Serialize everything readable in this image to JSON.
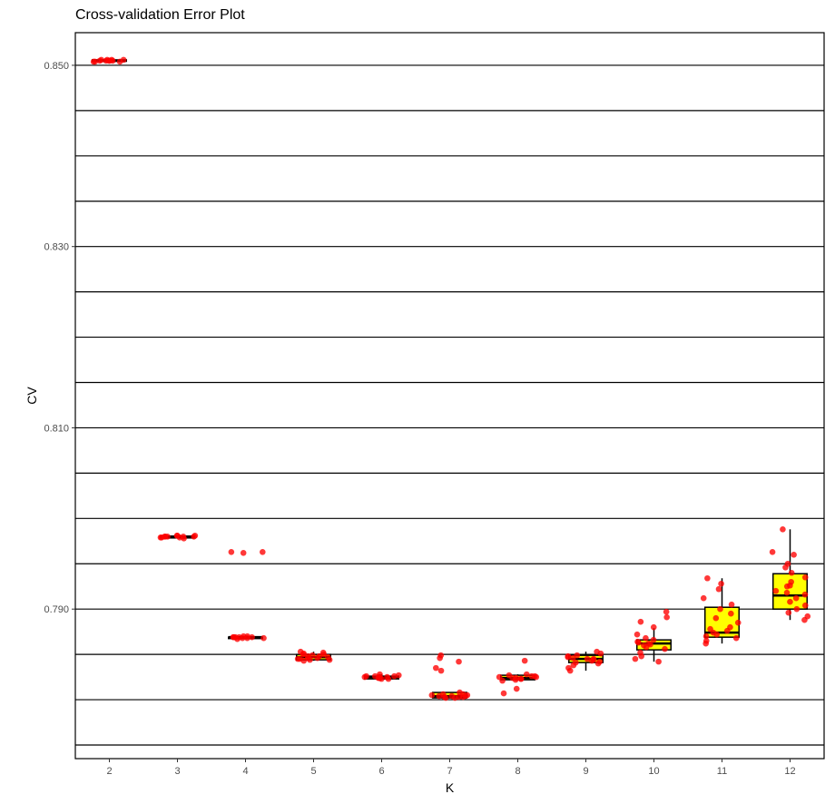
{
  "chart_data": {
    "type": "box",
    "title": "Cross-validation Error Plot",
    "xlabel": "K",
    "ylabel": "CV",
    "categories": [
      "2",
      "3",
      "4",
      "5",
      "6",
      "7",
      "8",
      "9",
      "10",
      "11",
      "12"
    ],
    "ylim": [
      0.7735,
      0.8536
    ],
    "yticks": [
      0.79,
      0.81,
      0.83,
      0.85
    ],
    "ytick_labels": [
      "0.790",
      "0.810",
      "0.830",
      "0.850"
    ],
    "gridlines": [
      0.775,
      0.78,
      0.785,
      0.79,
      0.795,
      0.8,
      0.805,
      0.81,
      0.815,
      0.82,
      0.825,
      0.83,
      0.835,
      0.84,
      0.845,
      0.85
    ],
    "box_fill": "#ffff00",
    "point_color": "#ff0000",
    "boxes": [
      {
        "k": "2",
        "min": 0.8505,
        "q1": 0.8505,
        "median": 0.8505,
        "q3": 0.8506,
        "max": 0.8506
      },
      {
        "k": "3",
        "min": 0.7979,
        "q1": 0.7979,
        "median": 0.798,
        "q3": 0.798,
        "max": 0.7981
      },
      {
        "k": "4",
        "min": 0.7868,
        "q1": 0.7868,
        "median": 0.7869,
        "q3": 0.7869,
        "max": 0.787
      },
      {
        "k": "5",
        "min": 0.7843,
        "q1": 0.7844,
        "median": 0.7847,
        "q3": 0.785,
        "max": 0.7853
      },
      {
        "k": "6",
        "min": 0.7823,
        "q1": 0.7823,
        "median": 0.7825,
        "q3": 0.7826,
        "max": 0.7828
      },
      {
        "k": "7",
        "min": 0.7802,
        "q1": 0.7802,
        "median": 0.7804,
        "q3": 0.7808,
        "max": 0.7808
      },
      {
        "k": "8",
        "min": 0.7822,
        "q1": 0.7822,
        "median": 0.7824,
        "q3": 0.7827,
        "max": 0.7828
      },
      {
        "k": "9",
        "min": 0.7832,
        "q1": 0.7841,
        "median": 0.7845,
        "q3": 0.7849,
        "max": 0.7853
      },
      {
        "k": "10",
        "min": 0.7842,
        "q1": 0.7855,
        "median": 0.7862,
        "q3": 0.7866,
        "max": 0.7879
      },
      {
        "k": "11",
        "min": 0.7862,
        "q1": 0.7869,
        "median": 0.7874,
        "q3": 0.7902,
        "max": 0.7934
      },
      {
        "k": "12",
        "min": 0.7888,
        "q1": 0.79,
        "median": 0.7915,
        "q3": 0.7939,
        "max": 0.7988
      }
    ],
    "points": [
      {
        "k": "2",
        "y": [
          0.8505,
          0.8506,
          0.8504,
          0.8505,
          0.8506,
          0.8505,
          0.8504,
          0.8506,
          0.8505,
          0.8505,
          0.8506,
          0.8504
        ]
      },
      {
        "k": "3",
        "y": [
          0.798,
          0.7979,
          0.7981,
          0.798,
          0.7978,
          0.798,
          0.7979,
          0.7981,
          0.798,
          0.7979,
          0.798,
          0.7981
        ]
      },
      {
        "k": "4",
        "y": [
          0.7963,
          0.7962,
          0.7963,
          0.7869,
          0.7868,
          0.787,
          0.7869,
          0.7867,
          0.7869,
          0.7868,
          0.787,
          0.7869,
          0.7868,
          0.7869
        ]
      },
      {
        "k": "5",
        "y": [
          0.7853,
          0.785,
          0.7848,
          0.7846,
          0.7845,
          0.7844,
          0.7843,
          0.7847,
          0.7849,
          0.7851,
          0.7846,
          0.7844,
          0.7852,
          0.7848,
          0.7845,
          0.785
        ]
      },
      {
        "k": "6",
        "y": [
          0.7828,
          0.7826,
          0.7825,
          0.7824,
          0.7823,
          0.7825,
          0.7827,
          0.7826,
          0.7824,
          0.7823,
          0.7825,
          0.7826,
          0.7824,
          0.7825
        ]
      },
      {
        "k": "7",
        "y": [
          0.7849,
          0.7846,
          0.7842,
          0.7835,
          0.7832,
          0.7808,
          0.7806,
          0.7805,
          0.7804,
          0.7803,
          0.7803,
          0.7802,
          0.7804,
          0.7805,
          0.7806,
          0.7803,
          0.7804,
          0.7802
        ]
      },
      {
        "k": "8",
        "y": [
          0.7843,
          0.7828,
          0.7827,
          0.7826,
          0.7825,
          0.7824,
          0.7823,
          0.7822,
          0.7821,
          0.7825,
          0.7824,
          0.7826,
          0.7823,
          0.7812,
          0.7807
        ]
      },
      {
        "k": "9",
        "y": [
          0.7853,
          0.7851,
          0.7849,
          0.7848,
          0.7846,
          0.7845,
          0.7844,
          0.7843,
          0.7842,
          0.7841,
          0.784,
          0.7838,
          0.7835,
          0.7832,
          0.7847,
          0.7845
        ]
      },
      {
        "k": "10",
        "y": [
          0.7897,
          0.7891,
          0.7886,
          0.788,
          0.7872,
          0.7868,
          0.7866,
          0.7864,
          0.7862,
          0.786,
          0.7858,
          0.7856,
          0.7852,
          0.7848,
          0.7845,
          0.7842,
          0.7863,
          0.7861
        ]
      },
      {
        "k": "11",
        "y": [
          0.7934,
          0.7928,
          0.7922,
          0.7912,
          0.7905,
          0.79,
          0.7895,
          0.789,
          0.7885,
          0.788,
          0.7876,
          0.7874,
          0.7872,
          0.787,
          0.7868,
          0.7865,
          0.7862,
          0.7878
        ]
      },
      {
        "k": "12",
        "y": [
          0.7988,
          0.7963,
          0.796,
          0.795,
          0.7946,
          0.794,
          0.7935,
          0.793,
          0.7925,
          0.792,
          0.7916,
          0.7912,
          0.7908,
          0.7904,
          0.79,
          0.7896,
          0.7892,
          0.7888,
          0.7918,
          0.7926
        ]
      }
    ]
  }
}
